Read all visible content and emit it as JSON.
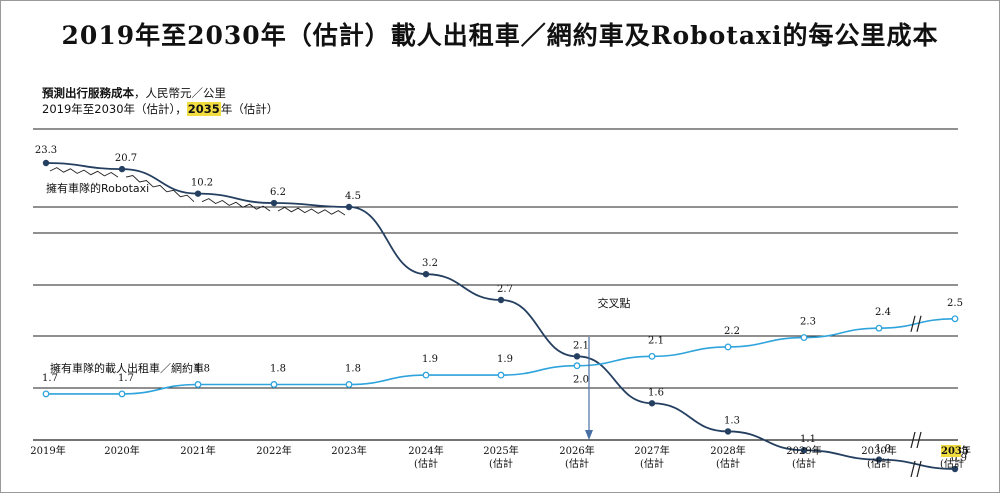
{
  "title": "2019年至2030年（估計）載人出租車／網約車及Robotaxi的每公里成本",
  "subtitle": {
    "metric_bold": "預測出行服務成本",
    "metric_rest": "，人民幣元／公里",
    "period_pre": "2019年至2030年（估計），",
    "period_hl": "2035",
    "period_post": "年（估計）"
  },
  "annotation": "交叉點",
  "chart_data": {
    "type": "line",
    "categories": [
      "2019年",
      "2020年",
      "2021年",
      "2022年",
      "2023年",
      "2024年(估計",
      "2025年(估計",
      "2026年(估計",
      "2027年(估計",
      "2028年(估計",
      "2029年(估計",
      "2030年(估計",
      "2035年(估計"
    ],
    "series": [
      {
        "name": "擁有車隊的Robotaxi",
        "color": "#243f60",
        "values": [
          23.3,
          20.7,
          10.2,
          6.2,
          4.5,
          3.2,
          2.7,
          2.1,
          1.6,
          1.3,
          1.1,
          1.0,
          0.9
        ]
      },
      {
        "name": "擁有車隊的載人出租車／網約車",
        "color": "#2ea3dc",
        "values": [
          1.7,
          1.7,
          1.8,
          1.8,
          1.8,
          1.9,
          1.9,
          2.0,
          2.1,
          2.2,
          2.3,
          2.4,
          2.5
        ]
      }
    ],
    "x_axis_breaks": [
      "2030年",
      "2035年"
    ],
    "y_axis_break": true,
    "grid": true,
    "legend": "inline-labels",
    "crossover_year": "2026年"
  }
}
